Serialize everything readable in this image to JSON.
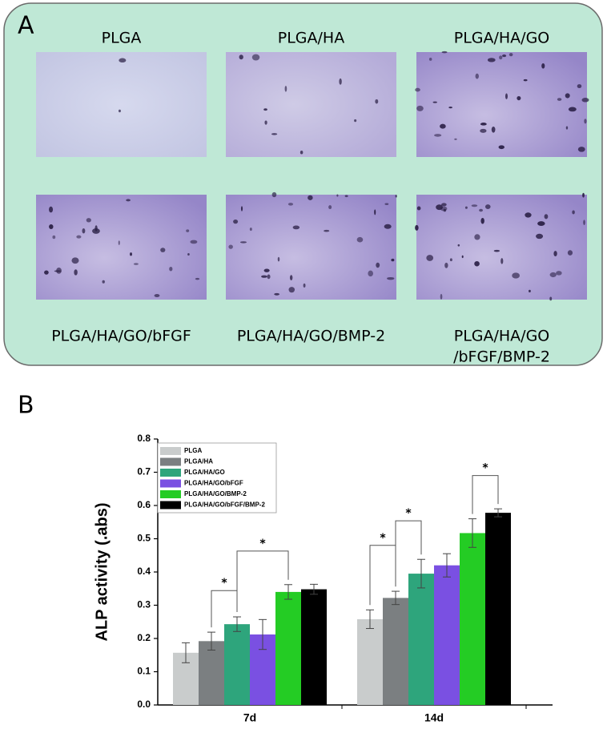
{
  "panel_a": {
    "label": "A",
    "images": [
      {
        "label": [
          "PLGA"
        ]
      },
      {
        "label": [
          "PLGA/HA"
        ]
      },
      {
        "label": [
          "PLGA/HA/GO"
        ]
      },
      {
        "label": [
          "PLGA/HA/GO/bFGF"
        ]
      },
      {
        "label": [
          "PLGA/HA/GO/BMP-2"
        ]
      },
      {
        "label": [
          "PLGA/HA/GO",
          "/bFGF/BMP-2"
        ]
      }
    ]
  },
  "chart_data": {
    "type": "bar",
    "label": "B",
    "y_label": "ALP activity (.abs)",
    "categories": [
      "7d",
      "14d"
    ],
    "series": [
      {
        "name": "PLGA",
        "color": "#c9cccc",
        "values": [
          0.157,
          0.258
        ],
        "errors": [
          0.03,
          0.028
        ]
      },
      {
        "name": "PLGA/HA",
        "color": "#7b7f81",
        "values": [
          0.192,
          0.322
        ],
        "errors": [
          0.027,
          0.02
        ]
      },
      {
        "name": "PLGA/HA/GO",
        "color": "#2ea57c",
        "values": [
          0.243,
          0.395
        ],
        "errors": [
          0.022,
          0.043
        ]
      },
      {
        "name": "PLGA/HA/GO/bFGF",
        "color": "#7a50e2",
        "values": [
          0.212,
          0.42
        ],
        "errors": [
          0.045,
          0.035
        ]
      },
      {
        "name": "PLGA/HA/GO/BMP-2",
        "color": "#24cc24",
        "values": [
          0.34,
          0.517
        ],
        "errors": [
          0.022,
          0.043
        ]
      },
      {
        "name": "PLGA/HA/GO/bFGF/BMP-2",
        "color": "#000000",
        "values": [
          0.348,
          0.578
        ],
        "errors": [
          0.015,
          0.012
        ]
      }
    ],
    "ylim": [
      0,
      0.8
    ],
    "yticks": [
      {
        "value": 0,
        "label": "0.0"
      },
      0.1,
      0.2,
      0.3,
      0.4,
      0.5,
      0.6,
      0.7,
      0.8
    ],
    "annotations": [
      {
        "text": "*",
        "category": "7d",
        "between": [
          "PLGA/HA",
          "PLGA/HA/GO"
        ],
        "y": 0.344
      },
      {
        "text": "*",
        "category": "7d",
        "between": [
          "PLGA/HA/GO",
          "PLGA/HA/GO/BMP-2"
        ],
        "y": 0.463
      },
      {
        "text": "*",
        "category": "14d",
        "between": [
          "PLGA",
          "PLGA/HA"
        ],
        "y": 0.48
      },
      {
        "text": "*",
        "category": "14d",
        "between": [
          "PLGA/HA",
          "PLGA/HA/GO"
        ],
        "y": 0.554
      },
      {
        "text": "*",
        "category": "14d",
        "between": [
          "PLGA/HA/GO/BMP-2",
          "PLGA/HA/GO/bFGF/BMP-2"
        ],
        "y": 0.69
      }
    ]
  }
}
